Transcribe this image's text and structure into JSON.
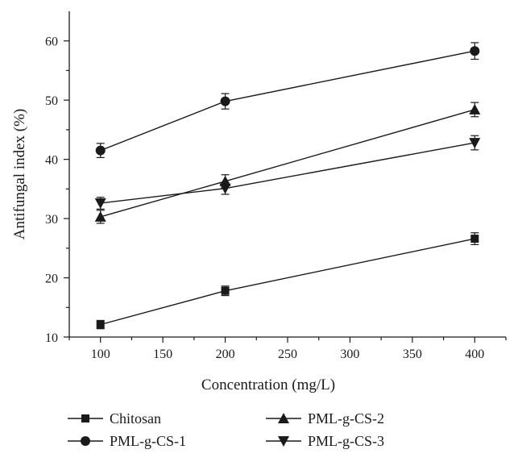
{
  "chart_data": {
    "type": "line",
    "title": "",
    "xlabel": "Concentration (mg/L)",
    "ylabel": "Antifungal index (%)",
    "xlim": [
      75,
      425
    ],
    "ylim": [
      10,
      65
    ],
    "x_ticks": [
      100,
      150,
      200,
      250,
      300,
      350,
      400
    ],
    "y_ticks": [
      10,
      20,
      30,
      40,
      50,
      60
    ],
    "grid": false,
    "legend_position": "bottom",
    "series": [
      {
        "name": "Chitosan",
        "marker": "square",
        "x": [
          100,
          200,
          400
        ],
        "y": [
          12.1,
          17.8,
          26.6
        ],
        "error": [
          0.7,
          0.8,
          1.0
        ]
      },
      {
        "name": "PML-g-CS-1",
        "marker": "circle",
        "x": [
          100,
          200,
          400
        ],
        "y": [
          41.5,
          49.8,
          58.3
        ],
        "error": [
          1.2,
          1.3,
          1.4
        ]
      },
      {
        "name": "PML-g-CS-2",
        "marker": "triangle-up",
        "x": [
          100,
          200,
          400
        ],
        "y": [
          30.3,
          36.3,
          48.4
        ],
        "error": [
          1.1,
          1.1,
          1.2
        ]
      },
      {
        "name": "PML-g-CS-3",
        "marker": "triangle-down",
        "x": [
          100,
          200,
          400
        ],
        "y": [
          32.6,
          35.1,
          42.8
        ],
        "error": [
          1.0,
          1.0,
          1.2
        ]
      }
    ]
  }
}
